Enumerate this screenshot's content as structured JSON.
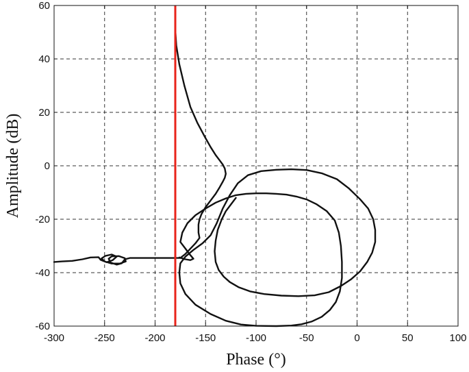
{
  "chart_data": {
    "type": "line",
    "title": "",
    "xlabel": "Phase (°)",
    "ylabel": "Amplitude (dB)",
    "xlim": [
      -300,
      100
    ],
    "ylim": [
      -60,
      60
    ],
    "x_ticks": [
      -300,
      -250,
      -200,
      -150,
      -100,
      -50,
      0,
      50,
      100
    ],
    "x_tick_labels": [
      "-300",
      "-250",
      "-200",
      "-150",
      "-100",
      "-50",
      "0",
      "50",
      "100"
    ],
    "y_ticks": [
      -60,
      -40,
      -20,
      0,
      20,
      40,
      60
    ],
    "y_tick_labels": [
      "-60",
      "-40",
      "-20",
      "0",
      "20",
      "40",
      "60"
    ],
    "grid": true,
    "grid_style": "dashed",
    "reference_line": {
      "x": -180,
      "color": "#e8231a"
    },
    "series": [
      {
        "color": "#111111",
        "points": [
          [
            -180,
            51
          ],
          [
            -179,
            45
          ],
          [
            -176,
            38
          ],
          [
            -171,
            30
          ],
          [
            -165,
            22
          ],
          [
            -158,
            16
          ],
          [
            -151,
            11
          ],
          [
            -145,
            7
          ],
          [
            -140,
            4
          ],
          [
            -136,
            2
          ],
          [
            -133,
            0.5
          ],
          [
            -131,
            -1
          ],
          [
            -130,
            -3
          ],
          [
            -131,
            -4.5
          ],
          [
            -133,
            -6
          ],
          [
            -136,
            -8
          ],
          [
            -140,
            -10.5
          ],
          [
            -145,
            -13
          ],
          [
            -150,
            -15.5
          ],
          [
            -154,
            -18
          ],
          [
            -156,
            -20
          ],
          [
            -157,
            -22
          ],
          [
            -157,
            -25
          ],
          [
            -156,
            -27
          ],
          [
            -160,
            -29
          ],
          [
            -165,
            -31
          ],
          [
            -170,
            -33
          ],
          [
            -175,
            -34.5
          ],
          [
            -180,
            -34.5
          ],
          [
            -200,
            -34.5
          ],
          [
            -225,
            -34.5
          ],
          [
            -230,
            -35
          ],
          [
            -233,
            -36.5
          ],
          [
            -238,
            -37
          ],
          [
            -244,
            -36.2
          ],
          [
            -246,
            -34.8
          ],
          [
            -243,
            -33.9
          ],
          [
            -236,
            -33.8
          ],
          [
            -230,
            -34.6
          ],
          [
            -229,
            -35.8
          ],
          [
            -235,
            -36.6
          ],
          [
            -243,
            -36.6
          ],
          [
            -250,
            -35.8
          ],
          [
            -253,
            -34.7
          ],
          [
            -249,
            -33.7
          ],
          [
            -243,
            -33.2
          ],
          [
            -238,
            -34
          ],
          [
            -242,
            -35.3
          ],
          [
            -248,
            -36.1
          ],
          [
            -254,
            -35.2
          ],
          [
            -256,
            -34.2
          ],
          [
            -264,
            -34.3
          ],
          [
            -272,
            -35
          ],
          [
            -282,
            -35.6
          ],
          [
            -292,
            -35.8
          ],
          [
            -300,
            -36
          ]
        ]
      },
      {
        "color": "#111111",
        "points": [
          [
            -176,
            -34.3
          ],
          [
            -170,
            -35
          ],
          [
            -165,
            -35.3
          ],
          [
            -162,
            -34.8
          ],
          [
            -166,
            -33
          ],
          [
            -170,
            -31
          ],
          [
            -175,
            -28.5
          ],
          [
            -173,
            -25
          ],
          [
            -168,
            -21.5
          ],
          [
            -160,
            -18.5
          ],
          [
            -150,
            -16
          ],
          [
            -140,
            -13.8
          ],
          [
            -130,
            -12.2
          ],
          [
            -120,
            -11
          ],
          [
            -110,
            -10.5
          ],
          [
            -100,
            -10.3
          ],
          [
            -90,
            -10.3
          ],
          [
            -80,
            -10.5
          ],
          [
            -70,
            -10.8
          ],
          [
            -60,
            -11.5
          ],
          [
            -50,
            -12.6
          ],
          [
            -40,
            -14.4
          ],
          [
            -30,
            -17
          ],
          [
            -22,
            -20.5
          ],
          [
            -18,
            -25
          ],
          [
            -16,
            -30
          ],
          [
            -15,
            -36
          ],
          [
            -15,
            -42
          ],
          [
            -17,
            -47
          ],
          [
            -21,
            -51
          ],
          [
            -27,
            -54
          ],
          [
            -35,
            -56.5
          ],
          [
            -45,
            -58.3
          ],
          [
            -55,
            -59.3
          ],
          [
            -65,
            -59.8
          ],
          [
            -80,
            -60
          ],
          [
            -100,
            -59.9
          ],
          [
            -115,
            -59.4
          ],
          [
            -130,
            -58
          ],
          [
            -145,
            -55.5
          ],
          [
            -160,
            -52
          ],
          [
            -170,
            -48
          ],
          [
            -175,
            -44
          ],
          [
            -176,
            -40
          ],
          [
            -175,
            -36.5
          ],
          [
            -170,
            -34
          ],
          [
            -162,
            -31.5
          ],
          [
            -153,
            -29
          ],
          [
            -145,
            -26
          ],
          [
            -139,
            -21.5
          ],
          [
            -133,
            -16
          ],
          [
            -126,
            -11
          ],
          [
            -118,
            -6.5
          ],
          [
            -108,
            -3.5
          ],
          [
            -95,
            -2
          ],
          [
            -80,
            -1.5
          ],
          [
            -65,
            -1.3
          ],
          [
            -50,
            -1.6
          ],
          [
            -35,
            -2.8
          ],
          [
            -20,
            -5
          ],
          [
            -8,
            -8.5
          ],
          [
            3,
            -12.5
          ],
          [
            11,
            -16
          ],
          [
            16,
            -20
          ],
          [
            18,
            -24
          ],
          [
            18,
            -28.5
          ],
          [
            15,
            -32.5
          ],
          [
            10,
            -36
          ],
          [
            3,
            -39.5
          ],
          [
            -6,
            -42.5
          ],
          [
            -16,
            -45
          ],
          [
            -28,
            -47.3
          ],
          [
            -42,
            -48.5
          ],
          [
            -58,
            -48.8
          ],
          [
            -75,
            -48.6
          ],
          [
            -92,
            -48
          ],
          [
            -106,
            -47
          ],
          [
            -117,
            -45.5
          ],
          [
            -126,
            -43.5
          ],
          [
            -132,
            -41.5
          ],
          [
            -137,
            -39
          ],
          [
            -140,
            -36
          ],
          [
            -141,
            -32
          ],
          [
            -140,
            -28
          ],
          [
            -138,
            -24
          ],
          [
            -134,
            -20
          ],
          [
            -130,
            -17
          ],
          [
            -125,
            -14.5
          ],
          [
            -120,
            -12
          ]
        ]
      }
    ]
  }
}
